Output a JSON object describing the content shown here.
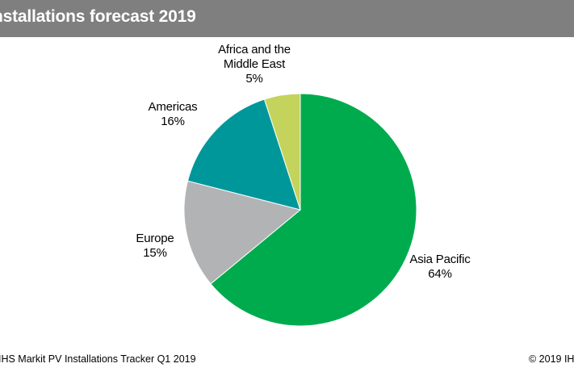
{
  "header": {
    "title": "nstallations forecast 2019"
  },
  "chart_data": {
    "type": "pie",
    "title": "nstallations forecast 2019",
    "slices": [
      {
        "label_lines": [
          "Asia Pacific"
        ],
        "percent_label": "64%",
        "value": 64,
        "color": "#00ab4e"
      },
      {
        "label_lines": [
          "Europe"
        ],
        "percent_label": "15%",
        "value": 15,
        "color": "#b2b3b5"
      },
      {
        "label_lines": [
          "Americas"
        ],
        "percent_label": "16%",
        "value": 16,
        "color": "#00979b"
      },
      {
        "label_lines": [
          "Africa and the",
          "Middle East"
        ],
        "percent_label": "5%",
        "value": 5,
        "color": "#c4d35c"
      }
    ],
    "legend": "none"
  },
  "footer": {
    "source": "IHS Markit PV Installations Tracker Q1 2019",
    "copyright": "© 2019 IH"
  }
}
